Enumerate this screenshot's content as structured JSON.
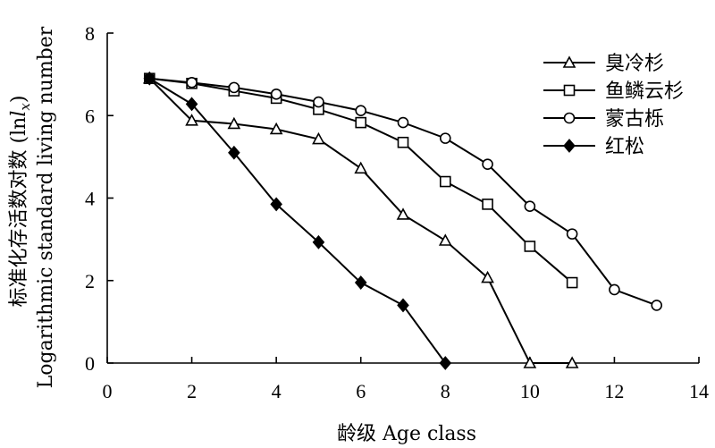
{
  "chart_data": {
    "type": "line",
    "xlabel": "龄级 Age class",
    "ylabel_cn": "标准化存活数对数 (ln",
    "ylabel_cn_var": "l",
    "ylabel_cn_sub": "x",
    "ylabel_cn_end": ")",
    "ylabel_en": "Logarithmic standard living number",
    "xlim": [
      0,
      14
    ],
    "ylim": [
      0,
      8
    ],
    "xticks": [
      "0",
      "2",
      "4",
      "6",
      "8",
      "10",
      "12",
      "14"
    ],
    "yticks": [
      "0",
      "2",
      "4",
      "6",
      "8"
    ],
    "grid": false,
    "legend_position": "top-right",
    "series": [
      {
        "name": "臭冷杉",
        "marker": "triangle",
        "x": [
          1,
          2,
          3,
          4,
          5,
          6,
          7,
          8,
          9,
          10,
          11
        ],
        "y": [
          6.9,
          5.88,
          5.8,
          5.67,
          5.43,
          4.72,
          3.6,
          2.97,
          2.07,
          0,
          0
        ]
      },
      {
        "name": "鱼鳞云杉",
        "marker": "square",
        "x": [
          1,
          2,
          3,
          4,
          5,
          6,
          7,
          8,
          9,
          10,
          11
        ],
        "y": [
          6.9,
          6.78,
          6.6,
          6.42,
          6.15,
          5.83,
          5.35,
          4.4,
          3.85,
          2.83,
          1.95
        ]
      },
      {
        "name": "蒙古栎",
        "marker": "circle",
        "x": [
          1,
          2,
          3,
          4,
          5,
          6,
          7,
          8,
          9,
          10,
          11,
          12,
          13
        ],
        "y": [
          6.9,
          6.8,
          6.68,
          6.52,
          6.33,
          6.12,
          5.83,
          5.45,
          4.82,
          3.8,
          3.13,
          1.78,
          1.4
        ]
      },
      {
        "name": "红松",
        "marker": "diamond",
        "x": [
          1,
          2,
          3,
          4,
          5,
          6,
          7,
          8
        ],
        "y": [
          6.9,
          6.28,
          5.1,
          3.85,
          2.93,
          1.95,
          1.4,
          0
        ]
      }
    ]
  }
}
